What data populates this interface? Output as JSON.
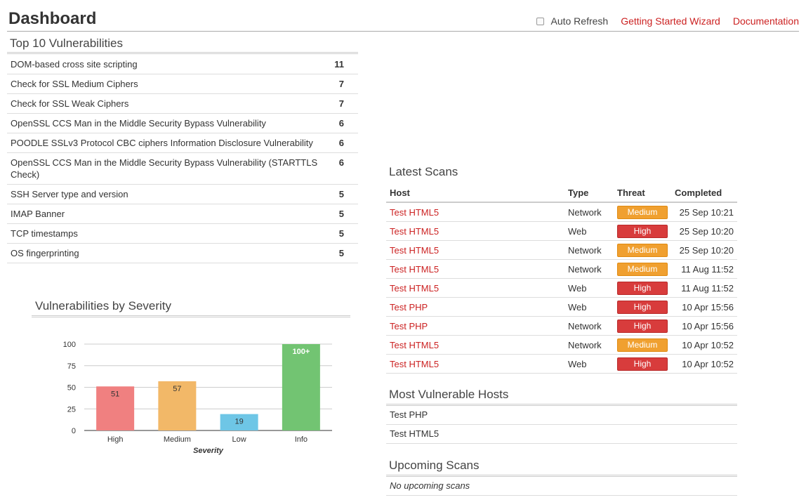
{
  "header": {
    "title": "Dashboard",
    "auto_refresh_label": "Auto Refresh",
    "auto_refresh_checked": false,
    "wizard_link": "Getting Started Wizard",
    "docs_link": "Documentation"
  },
  "top_vulns": {
    "title": "Top 10 Vulnerabilities",
    "items": [
      {
        "name": "DOM-based cross site scripting",
        "count": "11"
      },
      {
        "name": "Check for SSL Medium Ciphers",
        "count": "7"
      },
      {
        "name": "Check for SSL Weak Ciphers",
        "count": "7"
      },
      {
        "name": "OpenSSL CCS Man in the Middle Security Bypass Vulnerability",
        "count": "6"
      },
      {
        "name": "POODLE SSLv3 Protocol CBC ciphers Information Disclosure Vulnerability",
        "count": "6"
      },
      {
        "name": "OpenSSL CCS Man in the Middle Security Bypass Vulnerability (STARTTLS Check)",
        "count": "6"
      },
      {
        "name": "SSH Server type and version",
        "count": "5"
      },
      {
        "name": "IMAP Banner",
        "count": "5"
      },
      {
        "name": "TCP timestamps",
        "count": "5"
      },
      {
        "name": "OS fingerprinting",
        "count": "5"
      }
    ]
  },
  "severity": {
    "title": "Vulnerabilities by Severity"
  },
  "chart_data": {
    "type": "bar",
    "title": "",
    "xlabel": "Severity",
    "ylabel": "",
    "categories": [
      "High",
      "Medium",
      "Low",
      "Info"
    ],
    "values": [
      51,
      57,
      19,
      100
    ],
    "data_labels": [
      "51",
      "57",
      "19",
      "100+"
    ],
    "colors": [
      "#f08080",
      "#f2b868",
      "#6ec6e6",
      "#72c472"
    ],
    "ylim": [
      0,
      100
    ],
    "yticks": [
      "0",
      "25",
      "50",
      "75",
      "100"
    ],
    "grid": true
  },
  "latest_scans": {
    "title": "Latest Scans",
    "columns": [
      "Host",
      "Type",
      "Threat",
      "Completed"
    ],
    "rows": [
      {
        "host": "Test HTML5",
        "type": "Network",
        "threat": "Medium",
        "completed": "25 Sep 10:21"
      },
      {
        "host": "Test HTML5",
        "type": "Web",
        "threat": "High",
        "completed": "25 Sep 10:20"
      },
      {
        "host": "Test HTML5",
        "type": "Network",
        "threat": "Medium",
        "completed": "25 Sep 10:20"
      },
      {
        "host": "Test HTML5",
        "type": "Network",
        "threat": "Medium",
        "completed": "11 Aug 11:52"
      },
      {
        "host": "Test HTML5",
        "type": "Web",
        "threat": "High",
        "completed": "11 Aug 11:52"
      },
      {
        "host": "Test PHP",
        "type": "Web",
        "threat": "High",
        "completed": "10 Apr 15:56"
      },
      {
        "host": "Test PHP",
        "type": "Network",
        "threat": "High",
        "completed": "10 Apr 15:56"
      },
      {
        "host": "Test HTML5",
        "type": "Network",
        "threat": "Medium",
        "completed": "10 Apr 10:52"
      },
      {
        "host": "Test HTML5",
        "type": "Web",
        "threat": "High",
        "completed": "10 Apr 10:52"
      }
    ]
  },
  "vulnerable_hosts": {
    "title": "Most Vulnerable Hosts",
    "items": [
      "Test PHP",
      "Test HTML5"
    ]
  },
  "upcoming": {
    "title": "Upcoming Scans",
    "empty_text": "No upcoming scans"
  }
}
